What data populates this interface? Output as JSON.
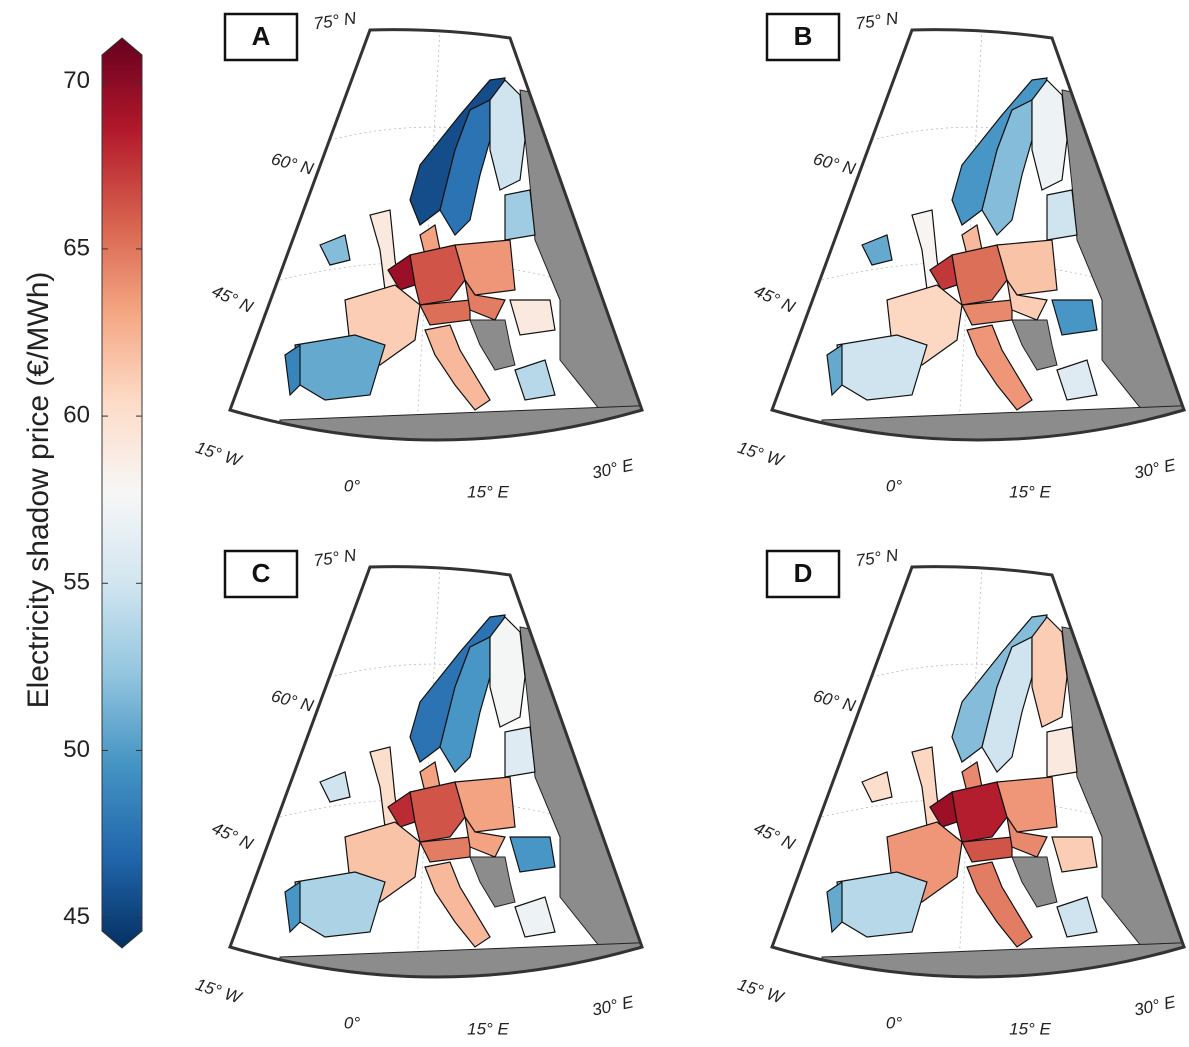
{
  "chart_data": {
    "type": "choropleth",
    "colorbar_label": "Electricity shadow price (€/MWh)",
    "clim": [
      44.6,
      70.8
    ],
    "cticks": [
      45,
      50,
      55,
      60,
      65,
      70
    ],
    "colormap": [
      "#053061",
      "#2166ac",
      "#4393c3",
      "#92c5de",
      "#d1e5f0",
      "#f7f7f7",
      "#fddbc7",
      "#f4a582",
      "#d6604d",
      "#b2182b",
      "#67001f"
    ],
    "graticule_labels": [
      "75° N",
      "60° N",
      "45° N",
      "15° W",
      "0°",
      "15° E",
      "30° E"
    ],
    "panels": [
      {
        "label": "A",
        "values": [
          46,
          48,
          55,
          53,
          63,
          59,
          52,
          69,
          66,
          63.5,
          61,
          51,
          49,
          62,
          65,
          64.5,
          59,
          54
        ]
      },
      {
        "label": "B",
        "values": [
          50,
          52,
          57,
          55,
          62,
          58,
          51,
          67,
          65,
          61.5,
          60.5,
          55,
          51,
          63.5,
          64,
          61,
          50,
          56
        ]
      },
      {
        "label": "C",
        "values": [
          48,
          50,
          57.5,
          56,
          63,
          60,
          55,
          67.5,
          66,
          63,
          61.5,
          53.5,
          50,
          62,
          64.5,
          63,
          50,
          57
        ]
      },
      {
        "label": "D",
        "values": [
          52,
          55,
          61,
          59,
          64,
          60.5,
          60,
          69,
          68,
          63.5,
          63.5,
          54,
          51,
          64.5,
          66,
          64,
          61,
          55
        ]
      }
    ]
  }
}
